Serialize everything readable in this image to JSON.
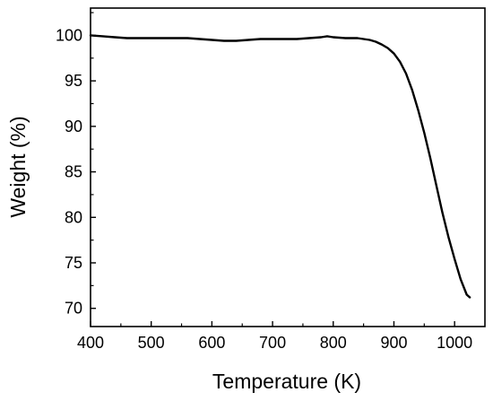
{
  "chart_data": {
    "type": "line",
    "title": "",
    "xlabel": "Temperature (K)",
    "ylabel": "Weight (%)",
    "xlim": [
      400,
      1050
    ],
    "ylim": [
      68,
      103
    ],
    "xticks": [
      400,
      500,
      600,
      700,
      800,
      900,
      1000
    ],
    "yticks": [
      70,
      75,
      80,
      85,
      90,
      95,
      100
    ],
    "grid": false,
    "legend": "none",
    "colors": {
      "line": "#000000",
      "axes": "#000000",
      "background": "#ffffff"
    },
    "series": [
      {
        "x": [
          400,
          420,
          440,
          460,
          480,
          500,
          520,
          540,
          560,
          580,
          600,
          620,
          640,
          660,
          680,
          700,
          720,
          740,
          760,
          780,
          790,
          800,
          820,
          840,
          860,
          870,
          880,
          890,
          900,
          910,
          920,
          930,
          940,
          950,
          960,
          970,
          980,
          990,
          1000,
          1010,
          1020,
          1025
        ],
        "y": [
          100.0,
          99.9,
          99.8,
          99.7,
          99.7,
          99.7,
          99.7,
          99.7,
          99.7,
          99.6,
          99.5,
          99.4,
          99.4,
          99.5,
          99.6,
          99.6,
          99.6,
          99.6,
          99.7,
          99.8,
          99.9,
          99.8,
          99.7,
          99.7,
          99.5,
          99.3,
          99.0,
          98.6,
          98.0,
          97.1,
          95.8,
          94.0,
          91.8,
          89.3,
          86.5,
          83.5,
          80.5,
          77.8,
          75.4,
          73.2,
          71.5,
          71.2
        ]
      }
    ]
  }
}
